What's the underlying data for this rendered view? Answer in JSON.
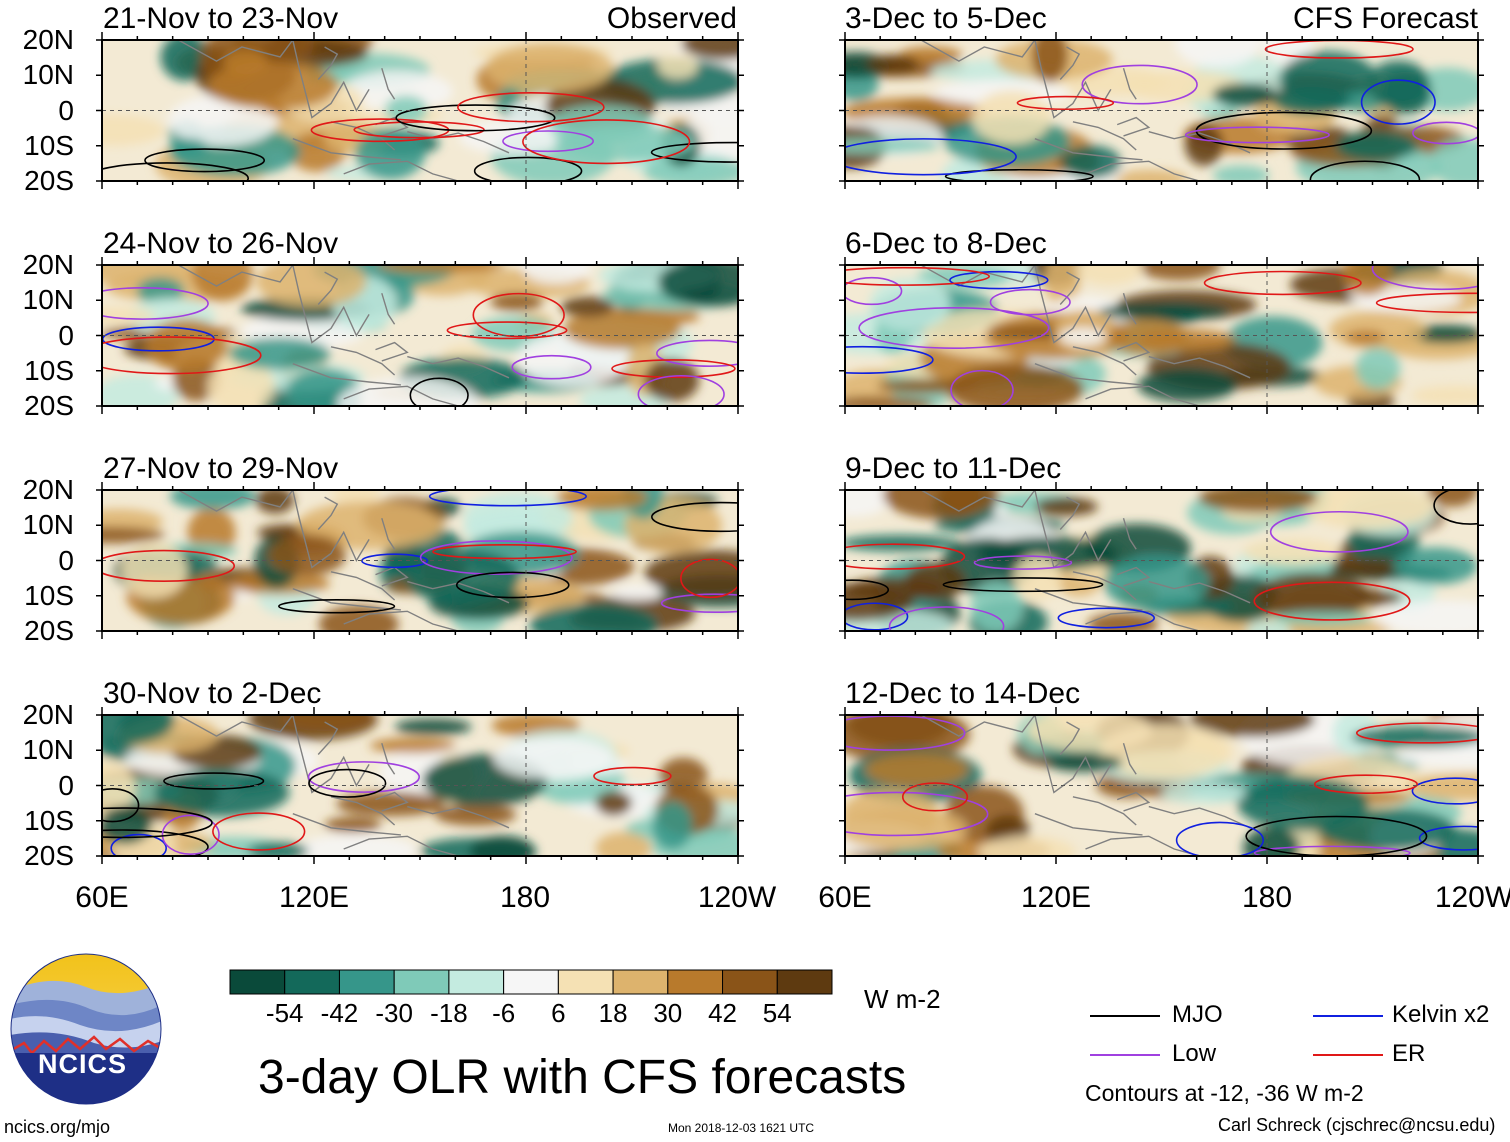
{
  "colors": {
    "mjo": "#000000",
    "low": "#a040e0",
    "kelvin": "#1020e0",
    "er": "#e01818",
    "coast": "#808080",
    "colorbar": [
      "#0a4a3a",
      "#13695a",
      "#36968a",
      "#7fcab8",
      "#c4ebe0",
      "#f6f6f6",
      "#f5e1b4",
      "#ddb36d",
      "#b87a2c",
      "#8a5418",
      "#5e3a10"
    ]
  },
  "chart_data": {
    "type": "heatmap",
    "title": "3-day OLR with CFS forecasts",
    "variable": "OLR anomaly",
    "units": "W m-2",
    "ylabel_ticks": [
      "20N",
      "10N",
      "0",
      "10S",
      "20S"
    ],
    "xlabel_ticks": [
      "60E",
      "120E",
      "180",
      "120W"
    ],
    "lat_range": [
      -20,
      20
    ],
    "lon_range": [
      60,
      240
    ],
    "left_column_label": "Observed",
    "right_column_label": "CFS Forecast",
    "panels": [
      {
        "period": "21-Nov to 23-Nov",
        "source": "Observed"
      },
      {
        "period": "24-Nov to 26-Nov",
        "source": "Observed"
      },
      {
        "period": "27-Nov to 29-Nov",
        "source": "Observed"
      },
      {
        "period": "30-Nov to 2-Dec",
        "source": "Observed"
      },
      {
        "period": "3-Dec to 5-Dec",
        "source": "CFS Forecast"
      },
      {
        "period": "6-Dec to 8-Dec",
        "source": "CFS Forecast"
      },
      {
        "period": "9-Dec to 11-Dec",
        "source": "CFS Forecast"
      },
      {
        "period": "12-Dec to 14-Dec",
        "source": "CFS Forecast"
      }
    ],
    "colorbar": {
      "tick_labels": [
        "-54",
        "-42",
        "-30",
        "-18",
        "-6",
        "6",
        "18",
        "30",
        "42",
        "54"
      ]
    },
    "legend": [
      {
        "label": "MJO",
        "color": "#000000"
      },
      {
        "label": "Kelvin x2",
        "color": "#1020e0"
      },
      {
        "label": "Low",
        "color": "#a040e0"
      },
      {
        "label": "ER",
        "color": "#e01818"
      }
    ],
    "contour_note": "Contours at -12, -36 W m-2"
  },
  "footer": {
    "logo_text": "NCICS",
    "url": "ncics.org/mjo",
    "timestamp": "Mon 2018-12-03 1621 UTC",
    "credit": "Carl Schreck (cjschrec@ncsu.edu)"
  }
}
